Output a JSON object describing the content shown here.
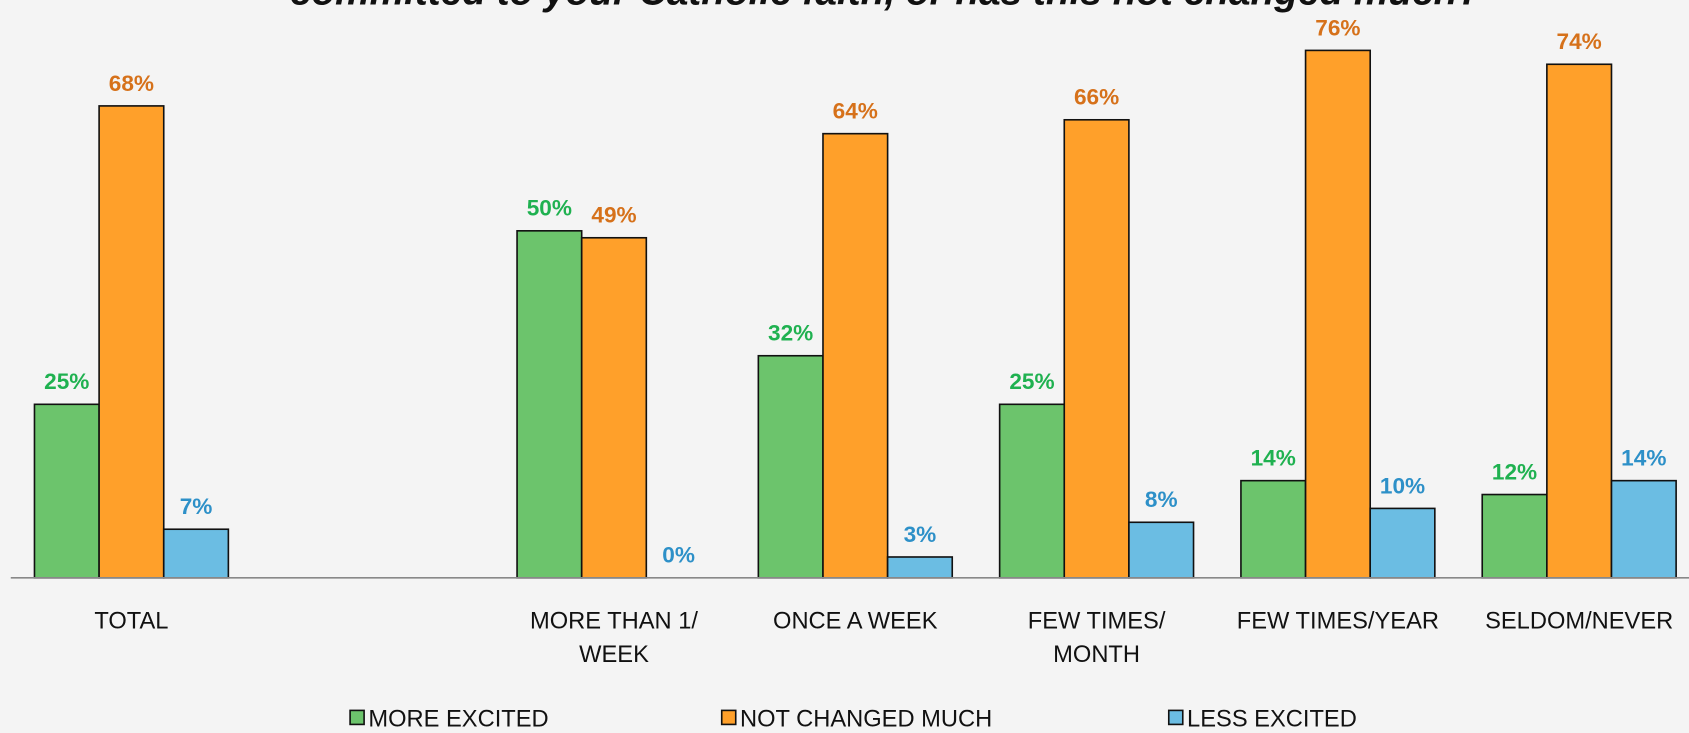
{
  "chart_data": {
    "type": "bar",
    "title": "committed to your Catholic faith, or has this not changed much?",
    "categories": [
      "TOTAL",
      null,
      "MORE THAN 1/\nWEEK",
      "ONCE A WEEK",
      "FEW TIMES/\nMONTH",
      "FEW TIMES/YEAR",
      "SELDOM/NEVER"
    ],
    "ylim": [
      0,
      80
    ],
    "series": [
      {
        "name": "MORE EXCITED",
        "color": "#6cc46c",
        "label_color": "#1fb150",
        "values": [
          25,
          null,
          50,
          32,
          25,
          14,
          12
        ],
        "value_labels": [
          "25%",
          null,
          "50%",
          "32%",
          "25%",
          "14%",
          "12%"
        ]
      },
      {
        "name": "NOT CHANGED MUCH",
        "color": "#ffa02a",
        "label_color": "#d6711a",
        "values": [
          68,
          null,
          49,
          64,
          66,
          76,
          74
        ],
        "value_labels": [
          "68%",
          null,
          "49%",
          "64%",
          "66%",
          "76%",
          "74%"
        ]
      },
      {
        "name": "LESS EXCITED",
        "color": "#6bbde3",
        "label_color": "#2d90c8",
        "values": [
          7,
          null,
          0,
          3,
          8,
          10,
          14
        ],
        "value_labels": [
          "7%",
          null,
          "0%",
          "3%",
          "8%",
          "10%",
          "14%"
        ]
      }
    ]
  }
}
